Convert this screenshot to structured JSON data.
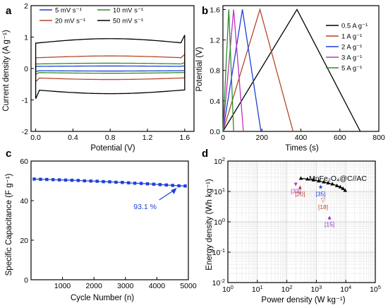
{
  "chart_data": [
    {
      "panel": "a",
      "type": "line",
      "xlabel": "Potential (V)",
      "ylabel": "Current density (A g⁻¹)",
      "xlim": [
        -0.05,
        1.7
      ],
      "ylim": [
        -2,
        2
      ],
      "x_ticks": [
        "0.0",
        "0.4",
        "0.8",
        "1.2",
        "1.6"
      ],
      "y_ticks": [
        "-2",
        "-1",
        "0",
        "1",
        "2"
      ],
      "legend_position": "top",
      "series": [
        {
          "name": "5 mV s⁻¹",
          "color": "#1f3fd8",
          "upper": 0.08,
          "lower": -0.08,
          "xmin": 0.0,
          "xmax": 1.6
        },
        {
          "name": "10 mV s⁻¹",
          "color": "#2e8b2e",
          "upper": 0.17,
          "lower": -0.15,
          "xmin": 0.0,
          "xmax": 1.6
        },
        {
          "name": "20 mV s⁻¹",
          "color": "#b5472a",
          "upper": 0.4,
          "lower": -0.35,
          "xmin": 0.0,
          "xmax": 1.6
        },
        {
          "name": "50 mV s⁻¹",
          "color": "#000000",
          "upper": 0.95,
          "lower": -0.8,
          "xmin": 0.0,
          "xmax": 1.6
        }
      ]
    },
    {
      "panel": "b",
      "type": "line",
      "xlabel": "Times (s)",
      "ylabel": "Potential (V)",
      "xlim": [
        0,
        800
      ],
      "ylim": [
        0,
        1.65
      ],
      "x_ticks": [
        "0",
        "200",
        "400",
        "600",
        "800"
      ],
      "y_ticks": [
        "0.0",
        "0.4",
        "0.8",
        "1.2",
        "1.6"
      ],
      "legend_position": "right",
      "series": [
        {
          "name": "0.5 A g⁻¹",
          "color": "#000000",
          "x": [
            0,
            380,
            705
          ],
          "y": [
            0,
            1.6,
            0
          ]
        },
        {
          "name": "1 A g⁻¹",
          "color": "#b5472a",
          "x": [
            0,
            190,
            360
          ],
          "y": [
            0,
            1.6,
            0
          ]
        },
        {
          "name": "2 A g⁻¹",
          "color": "#1f3fd8",
          "x": [
            0,
            100,
            195
          ],
          "y": [
            0,
            1.6,
            0
          ]
        },
        {
          "name": "3 A g⁻¹",
          "color": "#c030c0",
          "x": [
            0,
            55,
            105
          ],
          "y": [
            0,
            1.6,
            0
          ]
        },
        {
          "name": "5 A g⁻¹",
          "color": "#2e8b2e",
          "x": [
            0,
            30,
            55
          ],
          "y": [
            0,
            1.6,
            0
          ]
        }
      ]
    },
    {
      "panel": "c",
      "type": "line",
      "xlabel": "Cycle Number (n)",
      "ylabel": "Specific Capacitance  (F g⁻¹)",
      "xlim": [
        0,
        5000
      ],
      "ylim": [
        0,
        60
      ],
      "x_ticks": [
        "1000",
        "2000",
        "3000",
        "4000",
        "5000"
      ],
      "y_ticks": [
        "0",
        "20",
        "40",
        "60"
      ],
      "series": [
        {
          "name": "",
          "color": "#1f3fd8",
          "x": [
            100,
            300,
            500,
            700,
            900,
            1100,
            1300,
            1500,
            1700,
            1900,
            2100,
            2300,
            2500,
            2700,
            2900,
            3100,
            3300,
            3500,
            3700,
            3900,
            4100,
            4300,
            4500,
            4700,
            4900
          ],
          "y": [
            50.9,
            50.8,
            50.7,
            50.6,
            50.5,
            50.4,
            50.3,
            50.2,
            50.0,
            49.9,
            49.8,
            49.6,
            49.5,
            49.3,
            49.2,
            49.0,
            48.8,
            48.7,
            48.5,
            48.3,
            48.1,
            47.9,
            47.7,
            47.5,
            47.4
          ]
        }
      ],
      "annotations": [
        {
          "text": "93.1 %",
          "color": "#1f3fd8"
        }
      ]
    },
    {
      "panel": "d",
      "type": "scatter",
      "xlabel": "Power density (W kg⁻¹)",
      "ylabel": "Energy density (Wh kg⁻¹)",
      "xscale": "log",
      "yscale": "log",
      "xlim": [
        1,
        100000
      ],
      "ylim": [
        0.01,
        100
      ],
      "x_tick_exponents": [
        0,
        1,
        2,
        3,
        4,
        5
      ],
      "y_tick_exponents": [
        -2,
        -1,
        0,
        1,
        2
      ],
      "grid": true,
      "series": [
        {
          "name": "MnFe₂O₄@C//AC",
          "color": "#000000",
          "x": [
            300,
            500,
            800,
            1200,
            1800,
            2500,
            3500,
            5000,
            6500,
            8000,
            9500
          ],
          "y": [
            26.9,
            25.5,
            23.8,
            22.0,
            20.5,
            19.0,
            17.5,
            15.5,
            14.0,
            12.5,
            10.8
          ]
        }
      ],
      "references": [
        {
          "label": "[33]",
          "x": 200,
          "y": 15,
          "color": "#c030c0",
          "marker": "▼"
        },
        {
          "label": "[20]",
          "x": 280,
          "y": 12,
          "color": "#b5472a",
          "marker": "▲"
        },
        {
          "label": "[35]",
          "x": 1400,
          "y": 12,
          "color": "#1f3fd8",
          "marker": "★"
        },
        {
          "label": "[18]",
          "x": 1700,
          "y": 4.5,
          "color": "#b5472a",
          "marker": "▽"
        },
        {
          "label": "[15]",
          "x": 2800,
          "y": 1.2,
          "color": "#8a30c0",
          "marker": "▲"
        }
      ]
    }
  ]
}
